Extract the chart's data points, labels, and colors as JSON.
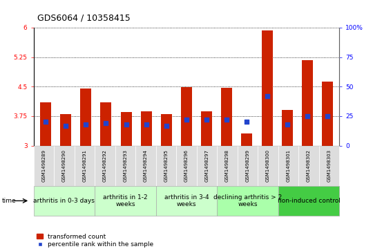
{
  "title": "GDS6064 / 10358415",
  "samples": [
    "GSM1498289",
    "GSM1498290",
    "GSM1498291",
    "GSM1498292",
    "GSM1498293",
    "GSM1498294",
    "GSM1498295",
    "GSM1498296",
    "GSM1498297",
    "GSM1498298",
    "GSM1498299",
    "GSM1498300",
    "GSM1498301",
    "GSM1498302",
    "GSM1498303"
  ],
  "transformed_count": [
    4.1,
    3.8,
    4.45,
    4.1,
    3.85,
    3.87,
    3.8,
    4.48,
    3.87,
    4.47,
    3.3,
    5.92,
    3.9,
    5.18,
    4.62
  ],
  "percentile_rank": [
    20,
    17,
    18,
    19,
    18,
    18,
    17,
    22,
    22,
    22,
    20,
    42,
    18,
    25,
    25
  ],
  "ylim": [
    3,
    6
  ],
  "yticks": [
    3,
    3.75,
    4.5,
    5.25,
    6
  ],
  "y2lim": [
    0,
    100
  ],
  "y2ticks": [
    0,
    25,
    50,
    75,
    100
  ],
  "bar_color": "#cc2200",
  "dot_color": "#2244cc",
  "groups": [
    {
      "label": "arthritis in 0-3 days",
      "start": 0,
      "end": 3,
      "color": "#ccffcc"
    },
    {
      "label": "arthritis in 1-2\nweeks",
      "start": 3,
      "end": 6,
      "color": "#ccffcc"
    },
    {
      "label": "arthritis in 3-4\nweeks",
      "start": 6,
      "end": 9,
      "color": "#ccffcc"
    },
    {
      "label": "declining arthritis > 2\nweeks",
      "start": 9,
      "end": 12,
      "color": "#aaffaa"
    },
    {
      "label": "non-induced control",
      "start": 12,
      "end": 15,
      "color": "#44cc44"
    }
  ],
  "bar_width": 0.55,
  "dot_size": 18,
  "grid_style": "dotted",
  "title_fontsize": 9,
  "tick_fontsize": 6.5,
  "sample_fontsize": 5.0,
  "group_fontsize": 6.5,
  "legend_fontsize": 6.5
}
